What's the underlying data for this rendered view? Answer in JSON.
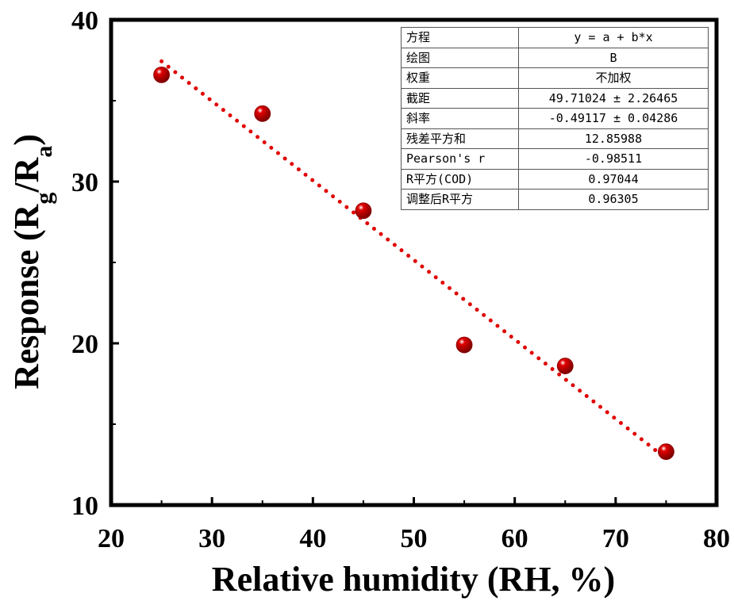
{
  "chart_data": {
    "type": "scatter",
    "xlabel": "Relative humidity (RH, %)",
    "ylabel": {
      "main": "Response (R",
      "sub1": "g",
      "mid": "/R",
      "sub2": "a",
      "end": ")"
    },
    "xlim": [
      20,
      80
    ],
    "ylim": [
      10,
      40
    ],
    "xticks": [
      "20",
      "30",
      "40",
      "50",
      "60",
      "70",
      "80"
    ],
    "yticks": [
      "10",
      "20",
      "30",
      "40"
    ],
    "grid": false,
    "points": [
      {
        "x": 25,
        "y": 36.6
      },
      {
        "x": 35,
        "y": 34.2
      },
      {
        "x": 45,
        "y": 28.2
      },
      {
        "x": 55,
        "y": 19.9
      },
      {
        "x": 65,
        "y": 18.6
      },
      {
        "x": 75,
        "y": 13.3
      }
    ],
    "fit": {
      "intercept": 49.71024,
      "slope": -0.49117,
      "x_range": [
        25,
        75
      ],
      "color": "#e00000",
      "style": "dotted"
    },
    "marker_color": "#e00000",
    "stats_table": [
      {
        "key": "方程",
        "value": "y = a + b*x"
      },
      {
        "key": "绘图",
        "value": "B"
      },
      {
        "key": "权重",
        "value": "不加权"
      },
      {
        "key": "截距",
        "value": "49.71024 ± 2.26465"
      },
      {
        "key": "斜率",
        "value": "-0.49117 ± 0.04286"
      },
      {
        "key": "残差平方和",
        "value": "12.85988"
      },
      {
        "key": "Pearson's r",
        "value": "-0.98511"
      },
      {
        "key": "R平方(COD)",
        "value": "0.97044"
      },
      {
        "key": "调整后R平方",
        "value": "0.96305"
      }
    ]
  }
}
